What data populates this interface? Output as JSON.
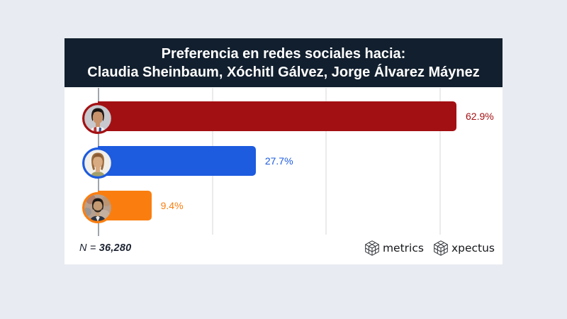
{
  "header": {
    "title_line1": "Preferencia en redes sociales hacia:",
    "title_line2": "Claudia Sheinbaum, Xóchitl Gálvez, Jorge Álvarez Máynez",
    "bg": "#121f2e",
    "text_color": "#ffffff"
  },
  "chart_data": {
    "type": "bar",
    "orientation": "horizontal",
    "title": "Preferencia en redes sociales hacia: Claudia Sheinbaum, Xóchitl Gálvez, Jorge Álvarez Máynez",
    "categories": [
      "Claudia Sheinbaum",
      "Xóchitl Gálvez",
      "Jorge Álvarez Máynez"
    ],
    "values": [
      62.9,
      27.7,
      9.4
    ],
    "labels": [
      "62.9%",
      "27.7%",
      "9.4%"
    ],
    "colors": [
      "#a31013",
      "#1d5bdf",
      "#fa7e0f"
    ],
    "xlim": [
      0,
      70
    ],
    "grid_step_pct": 20,
    "grid": true,
    "legend": false
  },
  "footnote": {
    "prefix": "N = ",
    "value": "36,280"
  },
  "logos": [
    {
      "name": "metrics"
    },
    {
      "name": "xpectus"
    }
  ],
  "colors": {
    "background": "#e8ebf1",
    "axis": "#a0a5ab",
    "gridline": "#ebebeb"
  }
}
